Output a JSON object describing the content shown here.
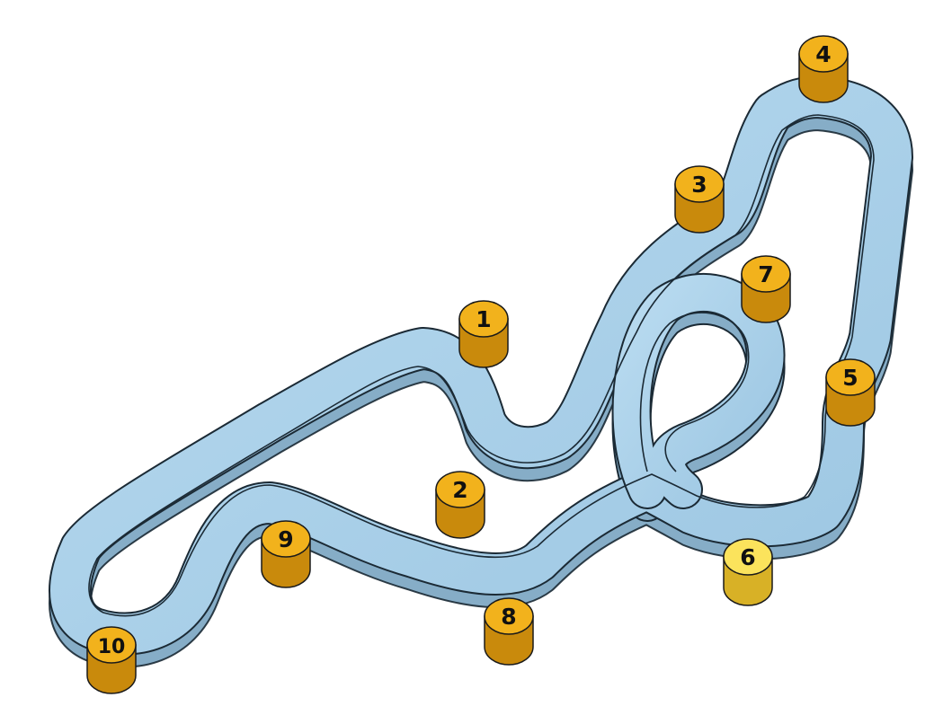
{
  "colors": {
    "track_top": "#a8cfe8",
    "track_side": "#86adc7",
    "track_edge": "#1b2a35",
    "marker_top": "#f2b21c",
    "marker_side": "#c98a0c",
    "marker_highlight_top": "#fbe35c",
    "marker_highlight_side": "#d8b126"
  },
  "markers": [
    {
      "id": "1",
      "label": "1",
      "highlight": false
    },
    {
      "id": "2",
      "label": "2",
      "highlight": false
    },
    {
      "id": "3",
      "label": "3",
      "highlight": false
    },
    {
      "id": "4",
      "label": "4",
      "highlight": false
    },
    {
      "id": "5",
      "label": "5",
      "highlight": false
    },
    {
      "id": "6",
      "label": "6",
      "highlight": true
    },
    {
      "id": "7",
      "label": "7",
      "highlight": false
    },
    {
      "id": "8",
      "label": "8",
      "highlight": false
    },
    {
      "id": "9",
      "label": "9",
      "highlight": false
    },
    {
      "id": "10",
      "label": "10",
      "highlight": false
    }
  ]
}
